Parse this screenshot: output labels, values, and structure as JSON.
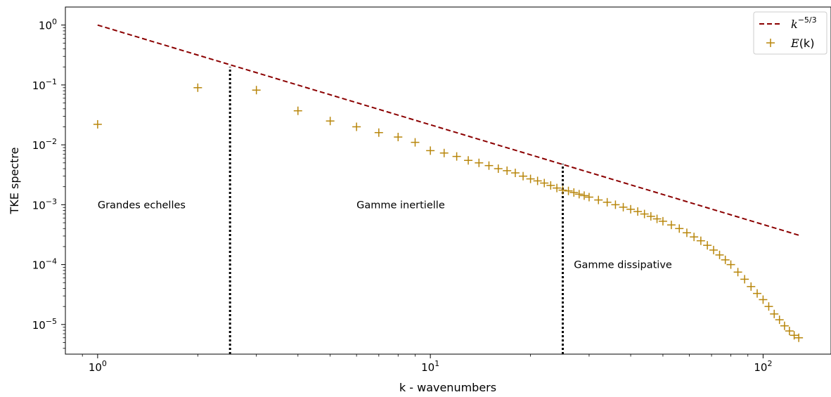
{
  "chart_data": {
    "type": "scatter",
    "scale": {
      "x": "log",
      "y": "log"
    },
    "xlabel": "k - wavenumbers",
    "ylabel": "TKE spectre",
    "xlim": [
      0.8,
      160
    ],
    "ylim": [
      3.2e-06,
      2.0
    ],
    "grid": false,
    "legend_placement": "top-right",
    "x_ticks": [
      {
        "value": 1,
        "base": "10",
        "exp": "0"
      },
      {
        "value": 10,
        "base": "10",
        "exp": "1"
      },
      {
        "value": 100,
        "base": "10",
        "exp": "2"
      }
    ],
    "y_ticks": [
      {
        "value": 1,
        "base": "10",
        "exp": "0"
      },
      {
        "value": 0.1,
        "base": "10",
        "exp": "−1"
      },
      {
        "value": 0.01,
        "base": "10",
        "exp": "−2"
      },
      {
        "value": 0.001,
        "base": "10",
        "exp": "−3"
      },
      {
        "value": 0.0001,
        "base": "10",
        "exp": "−4"
      },
      {
        "value": 1e-05,
        "base": "10",
        "exp": "−5"
      }
    ],
    "colors": {
      "reference_line": "#8b0000",
      "spectrum": "#b8860b",
      "dividers": "#000000"
    },
    "series": [
      {
        "name_base": "k",
        "name_sup": "−5/3",
        "kind": "dashed-line",
        "x": [
          1,
          128
        ],
        "y": [
          1.0,
          0.00031
        ]
      },
      {
        "name_base": "E",
        "name_args": "(k)",
        "kind": "plus-markers",
        "x": [
          1,
          2,
          3,
          4,
          5,
          6,
          7,
          8,
          9,
          10,
          11,
          12,
          13,
          14,
          15,
          16,
          17,
          18,
          19,
          20,
          21,
          22,
          23,
          24,
          25,
          26,
          27,
          28,
          29,
          30,
          32,
          34,
          36,
          38,
          40,
          42,
          44,
          46,
          48,
          50,
          53,
          56,
          59,
          62,
          65,
          68,
          71,
          74,
          77,
          80,
          84,
          88,
          92,
          96,
          100,
          104,
          108,
          112,
          116,
          120,
          124,
          128
        ],
        "y": [
          0.022,
          0.09,
          0.082,
          0.037,
          0.025,
          0.02,
          0.016,
          0.0135,
          0.011,
          0.008,
          0.0073,
          0.0064,
          0.0055,
          0.005,
          0.0045,
          0.004,
          0.0037,
          0.0034,
          0.003,
          0.0027,
          0.0025,
          0.0023,
          0.0021,
          0.0019,
          0.00175,
          0.0017,
          0.0016,
          0.0015,
          0.00142,
          0.00134,
          0.0012,
          0.0011,
          0.001,
          0.00091,
          0.00084,
          0.00077,
          0.0007,
          0.00064,
          0.00058,
          0.00053,
          0.00046,
          0.0004,
          0.00034,
          0.00029,
          0.00025,
          0.00021,
          0.000175,
          0.000145,
          0.00012,
          0.0001,
          7.5e-05,
          5.7e-05,
          4.3e-05,
          3.3e-05,
          2.6e-05,
          2e-05,
          1.5e-05,
          1.2e-05,
          9.5e-06,
          7.8e-06,
          6.6e-06,
          6e-06
        ]
      }
    ],
    "dividers": [
      {
        "x": 2.5,
        "y_top": 0.2
      },
      {
        "x": 25,
        "y_top": 0.0048
      }
    ],
    "annotations": [
      {
        "text": "Grandes echelles",
        "x": 1.0,
        "y": 0.001
      },
      {
        "text": "Gamme inertielle",
        "x": 6.0,
        "y": 0.001
      },
      {
        "text": "Gamme dissipative",
        "x": 27.0,
        "y": 0.0001
      }
    ]
  }
}
